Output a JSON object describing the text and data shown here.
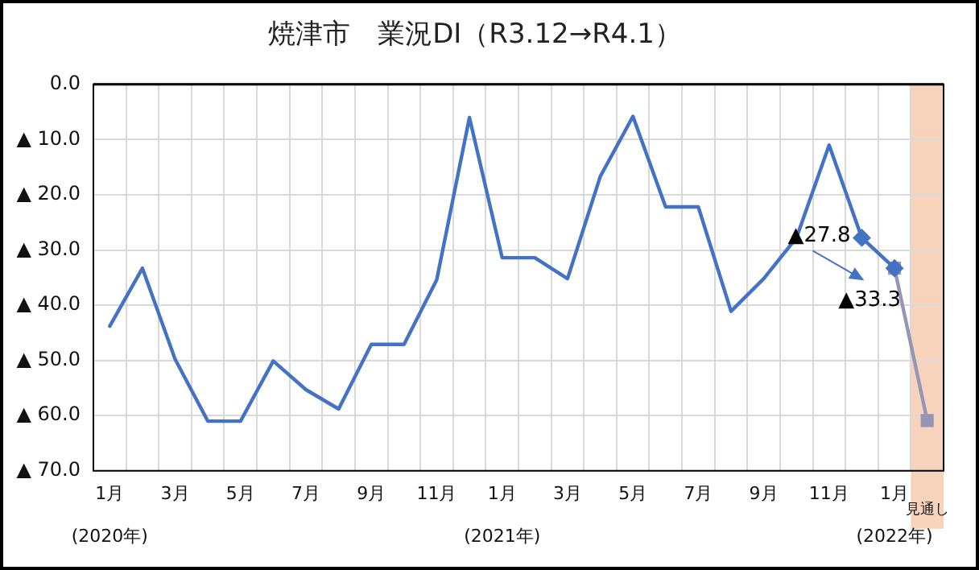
{
  "chart_data": {
    "type": "line",
    "title": "焼津市　業況DI（R3.12→R4.1）",
    "categories": [
      "1月\n(2020年)",
      null,
      "3月",
      null,
      "5月",
      null,
      "7月",
      null,
      "9月",
      null,
      "11月",
      null,
      "1月\n(2021年)",
      null,
      "3月",
      null,
      "5月",
      null,
      "7月",
      null,
      "9月",
      null,
      "11月",
      null,
      "1月\n(2022年)",
      "見通し"
    ],
    "series": [
      {
        "color": "#4472c4",
        "marker": "none",
        "values": [
          -43.8,
          -33.3,
          -49.8,
          -61.0,
          -61.0,
          -50.1,
          -55.3,
          -58.8,
          -47.1,
          -47.1,
          -35.4,
          -6.0,
          -31.4,
          -31.4,
          -35.2,
          -16.7,
          -5.8,
          -22.2,
          -22.2,
          -41.1,
          -35.2,
          -27.8,
          -11.0,
          -27.8,
          -33.3,
          null
        ]
      },
      {
        "type": "scatter",
        "color": "#4472c4",
        "marker": "diamond",
        "values": [
          null,
          null,
          null,
          null,
          null,
          null,
          null,
          null,
          null,
          null,
          null,
          null,
          null,
          null,
          null,
          null,
          null,
          null,
          null,
          null,
          null,
          null,
          null,
          -27.8,
          -33.3,
          null
        ]
      },
      {
        "color": "#9795b5",
        "marker": "square",
        "values": [
          null,
          null,
          null,
          null,
          null,
          null,
          null,
          null,
          null,
          null,
          null,
          null,
          null,
          null,
          null,
          null,
          null,
          null,
          null,
          null,
          null,
          null,
          null,
          null,
          -33.3,
          -60.9
        ]
      }
    ],
    "ylim": [
      -70,
      0
    ],
    "yticks": [
      {
        "value": 0,
        "label": "0.0"
      },
      {
        "value": -10,
        "label": "▲ 10.0"
      },
      {
        "value": -20,
        "label": "▲ 20.0"
      },
      {
        "value": -30,
        "label": "▲ 30.0"
      },
      {
        "value": -40,
        "label": "▲ 40.0"
      },
      {
        "value": -50,
        "label": "▲ 50.0"
      },
      {
        "value": -60,
        "label": "▲ 60.0"
      },
      {
        "value": -70,
        "label": "▲ 70.0"
      }
    ],
    "grid": true,
    "legend": false,
    "bands": [
      {
        "axis": "x",
        "from": "見通し",
        "to": "見通し",
        "color": "#f8d3bb"
      }
    ],
    "annotations": [
      "▲27.8",
      "▲33.3"
    ]
  }
}
